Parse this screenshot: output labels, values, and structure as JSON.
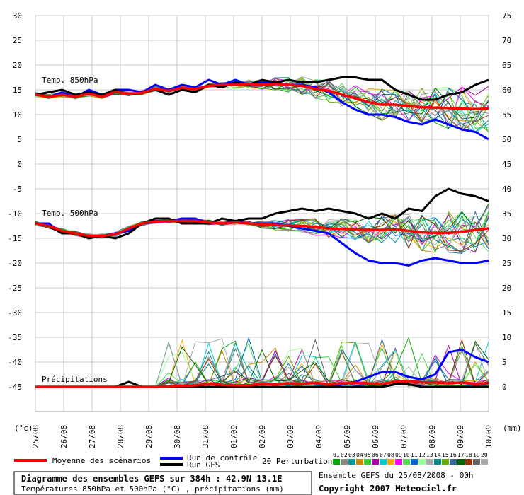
{
  "chart_data": {
    "type": "line",
    "left_axis": {
      "unit": "(°c)",
      "range": [
        -45,
        30
      ],
      "ticks": [
        "30",
        "25",
        "20",
        "15",
        "10",
        "5",
        "0",
        "-5",
        "-10",
        "-15",
        "-20",
        "-25",
        "-30",
        "-35",
        "-40",
        "-45"
      ]
    },
    "right_axis": {
      "unit": "(mm)",
      "ticks": [
        "75",
        "70",
        "65",
        "60",
        "55",
        "50",
        "45",
        "40",
        "35",
        "30",
        "25",
        "20",
        "15",
        "10",
        "5",
        "0"
      ]
    },
    "x_ticks": [
      "25/08",
      "26/08",
      "27/08",
      "28/08",
      "29/08",
      "30/08",
      "31/08",
      "01/09",
      "02/09",
      "03/09",
      "04/09",
      "05/09",
      "06/09",
      "07/09",
      "08/09",
      "09/09",
      "10/09"
    ],
    "grid": true,
    "annotations": {
      "t850": "Temp. 850hPa",
      "t500": "Temp. 500hPa",
      "precip": "Précipitations"
    },
    "series": [
      {
        "name": "Moyenne des scénarios",
        "color": "#ff0000",
        "t850": [
          14,
          13.6,
          14,
          13.6,
          14.2,
          13.6,
          14.6,
          14.2,
          14.4,
          15.2,
          14.8,
          15.4,
          15.2,
          15.8,
          16,
          16,
          16.2,
          16,
          16.2,
          16,
          15.8,
          15.2,
          14.8,
          14,
          13.3,
          12.5,
          12,
          12,
          11.7,
          11.5,
          11.4,
          11.3,
          11.2,
          11.1,
          11.2
        ],
        "t500": [
          -12,
          -12.5,
          -13.5,
          -14,
          -14.5,
          -14.5,
          -14.2,
          -13,
          -12,
          -11.6,
          -11.5,
          -11.5,
          -11.5,
          -11.8,
          -12,
          -11.8,
          -12,
          -12.2,
          -12.3,
          -12.4,
          -12.5,
          -12.7,
          -13,
          -13.1,
          -13.2,
          -13.3,
          -13.3,
          -13.2,
          -13.5,
          -13.8,
          -13.9,
          -13.9,
          -13.7,
          -13.3,
          -13
        ],
        "precip": [
          0,
          0,
          0,
          0,
          0,
          0,
          0,
          0,
          0,
          0,
          0.1,
          0.2,
          0.3,
          0.6,
          0.4,
          0.3,
          0.3,
          0.6,
          0.5,
          0.7,
          0.6,
          0.8,
          0.5,
          0.7,
          0.8,
          0.7,
          0.6,
          1,
          1.2,
          0.9,
          0.9,
          0.7,
          0.9,
          0.5,
          0.8
        ]
      },
      {
        "name": "Run de contrôle",
        "color": "#0000ff",
        "t850": [
          14,
          13.5,
          14.5,
          13.5,
          15,
          14,
          15,
          15,
          14.5,
          16,
          15,
          16,
          15.5,
          17,
          16,
          17,
          16,
          16.5,
          16.5,
          16,
          16,
          15.5,
          14.5,
          12.5,
          11,
          10,
          10,
          9.5,
          8.5,
          8,
          9,
          8,
          7,
          6.5,
          5
        ],
        "t500": [
          -12,
          -12,
          -14,
          -14,
          -14.5,
          -14.5,
          -14,
          -13.5,
          -12,
          -11.5,
          -11.5,
          -11,
          -11,
          -12,
          -12,
          -11.5,
          -12,
          -12,
          -12,
          -12.5,
          -13,
          -13.5,
          -14,
          -16,
          -18,
          -19.5,
          -20,
          -20,
          -20.5,
          -19.5,
          -19,
          -19.5,
          -20,
          -20,
          -19.5
        ],
        "precip": [
          0,
          0,
          0,
          0,
          0,
          0,
          0,
          0,
          0,
          0,
          0,
          0,
          0,
          0,
          0,
          0,
          0,
          0,
          0,
          0,
          0,
          0,
          0,
          0.5,
          1,
          2,
          3,
          3,
          2,
          1.5,
          2.5,
          7,
          7.5,
          6,
          5
        ]
      },
      {
        "name": "Run GFS",
        "color": "#000000",
        "t850": [
          14,
          14.5,
          15,
          14,
          14.5,
          14,
          15,
          14,
          14.5,
          15,
          14,
          15,
          14.5,
          16,
          15.5,
          16.5,
          16,
          17,
          16.5,
          17,
          16.5,
          16.5,
          17,
          17.5,
          17.5,
          17,
          17,
          15,
          14,
          13,
          13,
          14,
          14.5,
          16,
          17
        ],
        "t500": [
          -12,
          -12.5,
          -14,
          -14,
          -15,
          -14.5,
          -15,
          -14,
          -12,
          -11,
          -11,
          -12,
          -12,
          -12,
          -11,
          -11.5,
          -11,
          -11,
          -10,
          -9.5,
          -9,
          -9.5,
          -9,
          -9.5,
          -10,
          -11,
          -10,
          -11,
          -9,
          -9.5,
          -6.5,
          -5,
          -6,
          -6.5,
          -7.5
        ],
        "precip": [
          0,
          0,
          0,
          0,
          0,
          0,
          0,
          1,
          0,
          0,
          0,
          0,
          0,
          0,
          0,
          0,
          0,
          0,
          0,
          0,
          0,
          0,
          0,
          0,
          0,
          0,
          0,
          0.5,
          0.5,
          0,
          0,
          0,
          0,
          0,
          0
        ]
      }
    ],
    "perturbations": {
      "label": "20 Perturbations",
      "ids": [
        "01",
        "02",
        "03",
        "04",
        "05",
        "06",
        "07",
        "08",
        "09",
        "10",
        "11",
        "12",
        "13",
        "14",
        "15",
        "16",
        "17",
        "18",
        "19",
        "20"
      ],
      "colors": [
        "#00aa00",
        "#888888",
        "#009999",
        "#cc8800",
        "#33cc33",
        "#aa00aa",
        "#00cccc",
        "#ffaa00",
        "#ff00ff",
        "#55dd55",
        "#0066cc",
        "#99ff99",
        "#aaaaaa",
        "#008888",
        "#66aa00",
        "#336699",
        "#006600",
        "#993300",
        "#666666",
        "#aaaaaa"
      ]
    }
  },
  "legend": {
    "mean": "Moyenne des scénarios",
    "control": "Run de contrôle",
    "gfs": "Run GFS",
    "perturbations": "20 Perturbations"
  },
  "footer": {
    "title": "Diagramme des ensembles GEFS sur 384h : 42.9N 13.1E",
    "subtitle": "Températures 850hPa et 500hPa (°C) , précipitations (mm)",
    "run": "Ensemble GEFS du 25/08/2008 - 00h",
    "copyright": "Copyright 2007 Meteociel.fr"
  }
}
